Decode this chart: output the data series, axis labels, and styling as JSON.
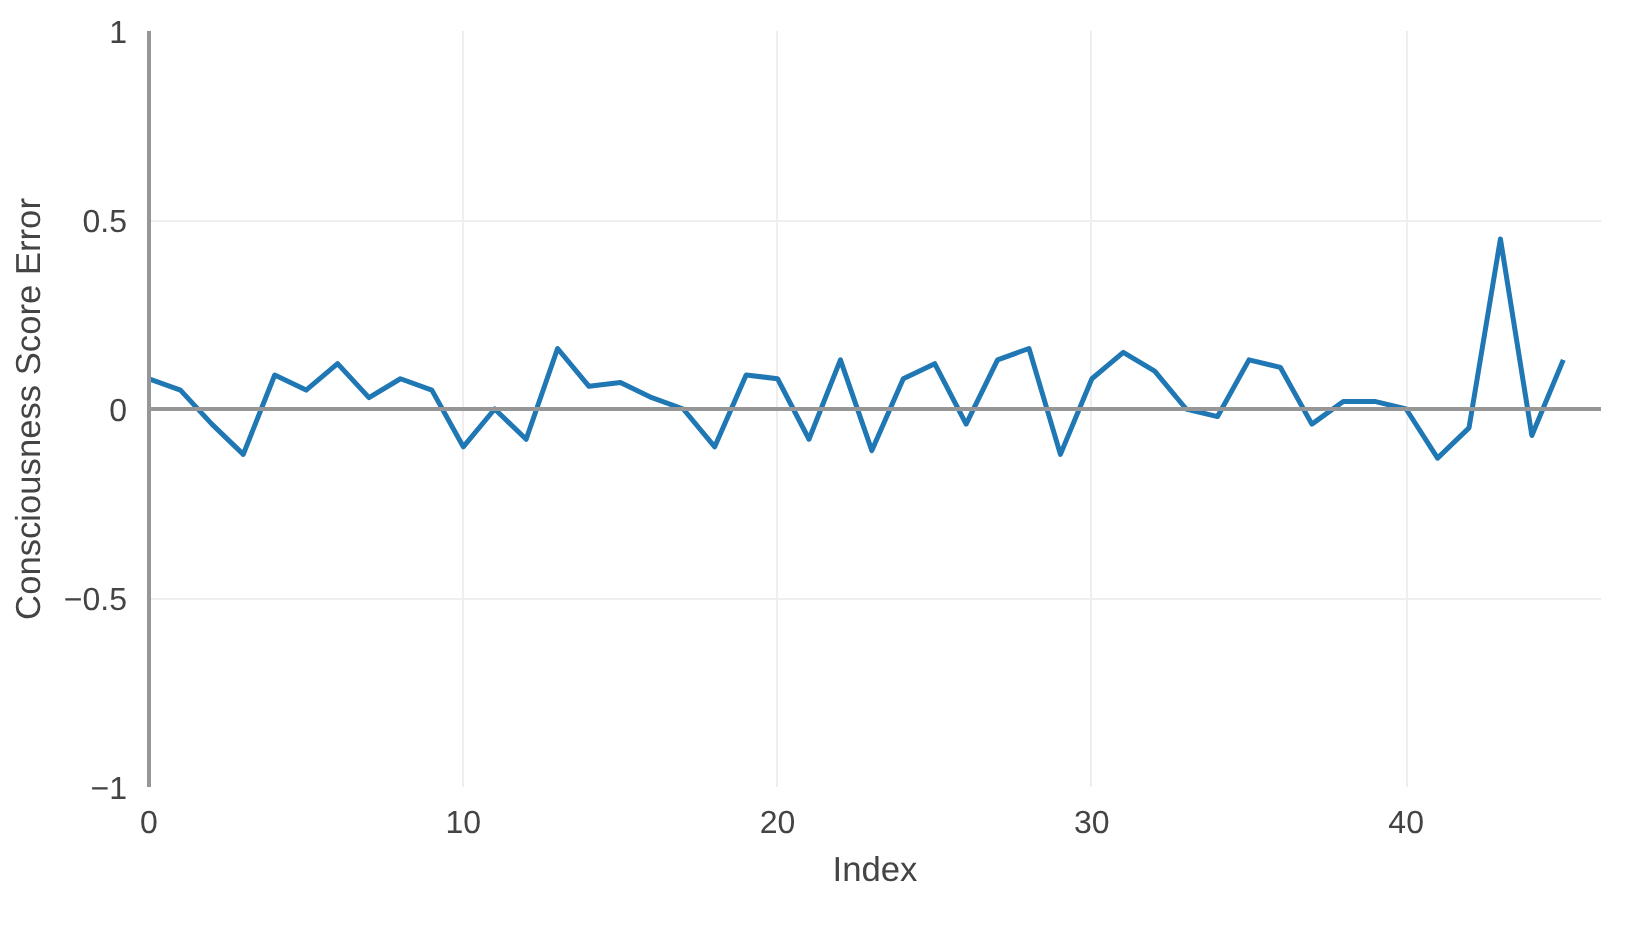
{
  "chart_data": {
    "type": "line",
    "xlabel": "Index",
    "ylabel": "Consciousness Score Error",
    "x": [
      0,
      1,
      2,
      3,
      4,
      5,
      6,
      7,
      8,
      9,
      10,
      11,
      12,
      13,
      14,
      15,
      16,
      17,
      18,
      19,
      20,
      21,
      22,
      23,
      24,
      25,
      26,
      27,
      28,
      29,
      30,
      31,
      32,
      33,
      34,
      35,
      36,
      37,
      38,
      39,
      40,
      41,
      42,
      43,
      44,
      45
    ],
    "series": [
      {
        "color": "#1f77b4",
        "values": [
          0.08,
          0.05,
          -0.04,
          -0.12,
          0.09,
          0.05,
          0.12,
          0.03,
          0.08,
          0.05,
          -0.1,
          0.0,
          -0.08,
          0.16,
          0.06,
          0.07,
          0.03,
          0.0,
          -0.1,
          0.09,
          0.08,
          -0.08,
          0.13,
          -0.11,
          0.08,
          0.12,
          -0.04,
          0.13,
          0.16,
          -0.12,
          0.08,
          0.15,
          0.1,
          0.0,
          -0.02,
          0.13,
          0.11,
          -0.04,
          0.02,
          0.02,
          0.0,
          -0.13,
          -0.05,
          0.45,
          -0.07,
          0.13
        ]
      }
    ],
    "xlim": [
      0,
      46.2
    ],
    "ylim": [
      -1,
      1
    ],
    "xticks": [
      0,
      10,
      20,
      30,
      40
    ],
    "yticks": [
      -1,
      -0.5,
      0,
      0.5,
      1
    ],
    "ref_lines": [
      {
        "axis": "y",
        "value": 0,
        "color": "#969696"
      }
    ],
    "grid": true,
    "marker": "none",
    "line_style": "solid"
  }
}
